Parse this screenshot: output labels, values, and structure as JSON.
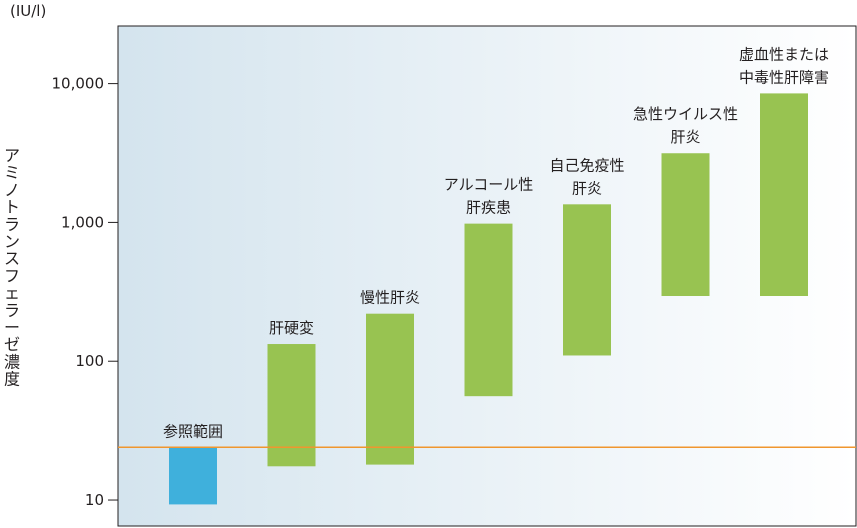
{
  "chart_data": {
    "type": "bar",
    "subtype": "floating-range",
    "y_scale": "log",
    "ylim": [
      6.5,
      26000
    ],
    "y_unit": "(IU/l)",
    "ylabel": "アミノトランスフェラーゼ濃度",
    "y_ticks": [
      {
        "value": 10,
        "label": "10"
      },
      {
        "value": 100,
        "label": "100"
      },
      {
        "value": 1000,
        "label": "1,000"
      },
      {
        "value": 10000,
        "label": "10,000"
      }
    ],
    "reference_line": {
      "value": 24,
      "color": "#f0962e"
    },
    "categories": [
      {
        "label_lines": [
          "参照範囲"
        ],
        "low": 9.3,
        "high": 24,
        "color": "#3fb0dc"
      },
      {
        "label_lines": [
          "肝硬変"
        ],
        "low": 17.5,
        "high": 133,
        "color": "#98c351"
      },
      {
        "label_lines": [
          "慢性肝炎"
        ],
        "low": 18,
        "high": 220,
        "color": "#98c351"
      },
      {
        "label_lines": [
          "アルコール性",
          "肝疾患"
        ],
        "low": 56,
        "high": 980,
        "color": "#98c351"
      },
      {
        "label_lines": [
          "自己免疫性",
          "肝炎"
        ],
        "low": 110,
        "high": 1350,
        "color": "#98c351"
      },
      {
        "label_lines": [
          "急性ウイルス性",
          "肝炎"
        ],
        "low": 295,
        "high": 3150,
        "color": "#98c351"
      },
      {
        "label_lines": [
          "虚血性または",
          "中毒性肝障害"
        ],
        "low": 295,
        "high": 8500,
        "color": "#98c351"
      }
    ],
    "background_gradient": [
      "#d4e4ee",
      "#ffffff"
    ]
  }
}
